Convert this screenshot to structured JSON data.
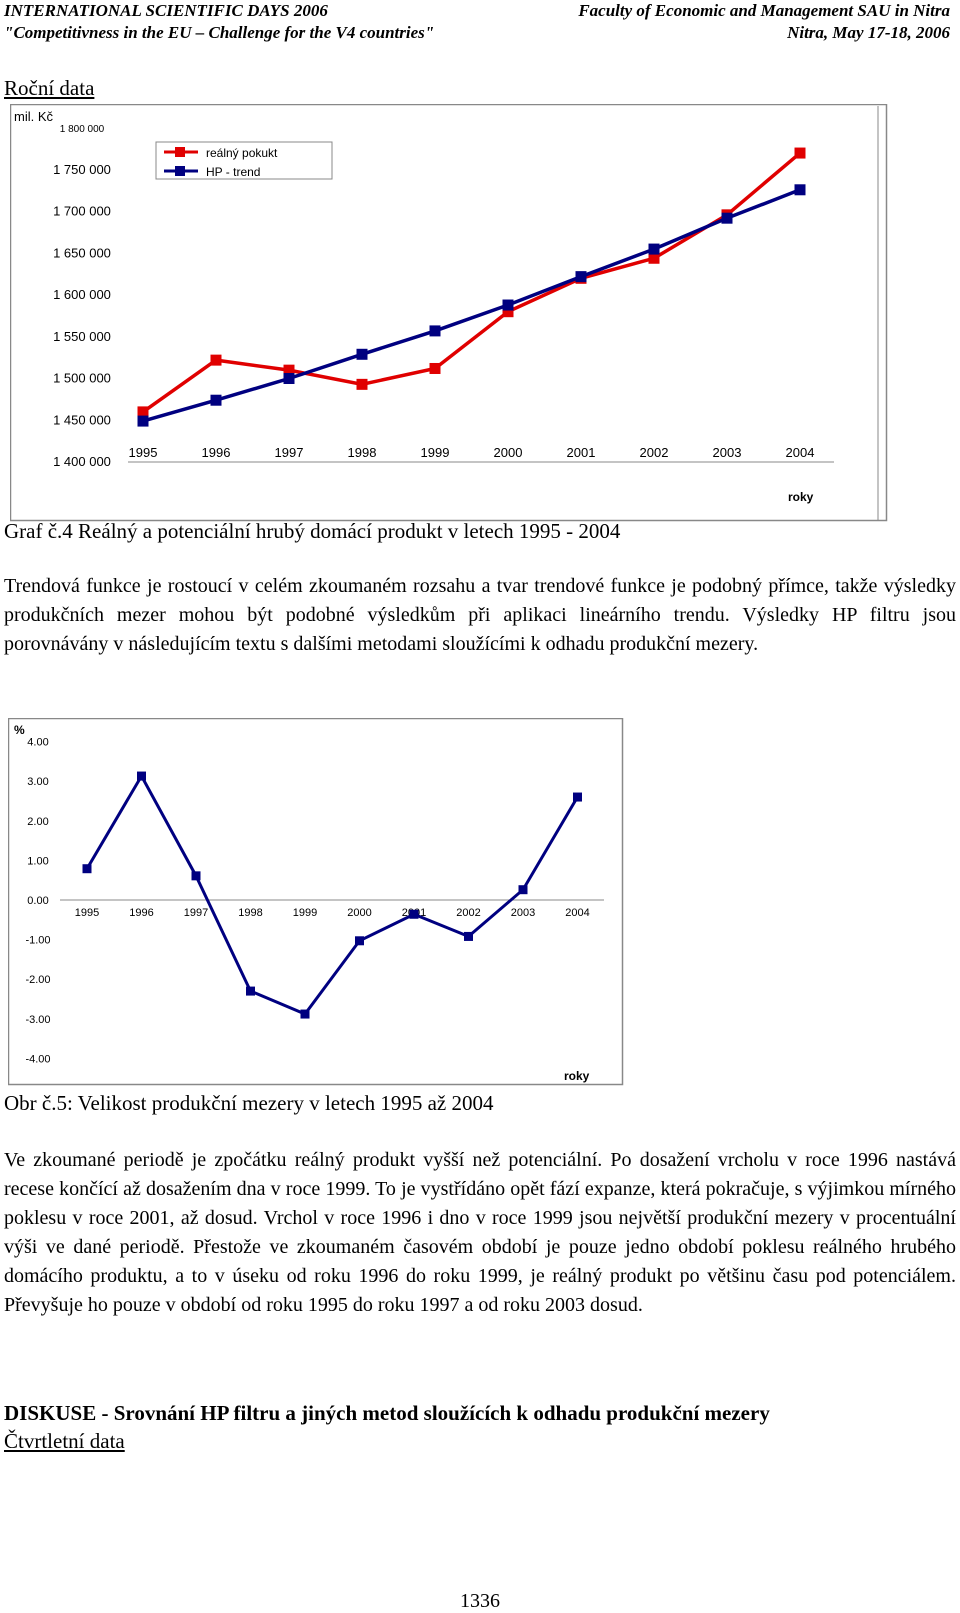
{
  "header": {
    "left_line1": "INTERNATIONAL SCIENTIFIC DAYS 2006",
    "right_line1": "Faculty of Economic and Management SAU in Nitra",
    "left_line2": "\"Competitivness in the EU – Challenge for the V4 countries\"",
    "right_line2": "Nitra, May 17-18, 2006"
  },
  "section_annual": "Roční data",
  "chart_data": [
    {
      "type": "line",
      "ylabel": "mil. Kč",
      "xlabel": "roky",
      "categories": [
        "1995",
        "1996",
        "1997",
        "1998",
        "1999",
        "2000",
        "2001",
        "2002",
        "2003",
        "2004"
      ],
      "ylim": [
        1400000,
        1800000
      ],
      "yticks": [
        "1 800 000",
        "1 750 000",
        "1 700 000",
        "1 650 000",
        "1 600 000",
        "1 550 000",
        "1 500 000",
        "1 450 000",
        "1 400 000"
      ],
      "legend_position": "top-left",
      "series": [
        {
          "name": "reálný pokukt",
          "color": "#e00000",
          "values": [
            1460000,
            1522000,
            1510000,
            1493000,
            1512000,
            1580000,
            1620000,
            1644000,
            1696000,
            1770000
          ]
        },
        {
          "name": "HP - trend",
          "color": "#000080",
          "values": [
            1449000,
            1474000,
            1500000,
            1529000,
            1557000,
            1588000,
            1622000,
            1655000,
            1692000,
            1726000
          ]
        }
      ]
    },
    {
      "type": "line",
      "ylabel": "%",
      "xlabel": "roky",
      "categories": [
        "1995",
        "1996",
        "1997",
        "1998",
        "1999",
        "2000",
        "2001",
        "2002",
        "2003",
        "2004"
      ],
      "ylim": [
        -4,
        4
      ],
      "yticks": [
        "4.00",
        "3.00",
        "2.00",
        "1.00",
        "0.00",
        "-1.00",
        "-2.00",
        "-3.00",
        "-4.00"
      ],
      "series": [
        {
          "color": "#000080",
          "values": [
            0.79,
            3.13,
            0.61,
            -2.3,
            -2.88,
            -1.03,
            -0.36,
            -0.92,
            0.26,
            2.6
          ]
        }
      ]
    }
  ],
  "caption1": "Graf č.4 Reálný a potenciální hrubý domácí produkt v letech 1995 - 2004",
  "para1": "Trendová funkce je rostoucí v celém zkoumaném rozsahu a tvar trendové funkce je podobný přímce, takže výsledky produkčních mezer mohou být podobné výsledkům při aplikaci lineárního trendu. Výsledky HP filtru jsou porovnávány v následujícím textu s dalšími metodami sloužícími k odhadu produkční mezery.",
  "caption2": "Obr č.5: Velikost produkční mezery  v letech 1995 až 2004",
  "para2": "Ve zkoumané periodě je zpočátku reálný produkt vyšší než potenciální. Po dosažení vrcholu v roce 1996 nastává recese končící až dosažením dna v roce 1999. To je vystřídáno opět fází expanze, která pokračuje, s výjimkou mírného poklesu v roce 2001, až dosud. Vrchol v roce 1996 i dno v roce 1999 jsou největší produkční mezery v procentuální výši ve dané periodě. Přestože ve zkoumaném časovém období je pouze jedno období poklesu reálného hrubého domácího produktu, a to v úseku od roku 1996 do roku 1999, je reálný produkt po většinu času pod potenciálem. Převyšuje ho pouze v období od roku 1995 do roku 1997 a od roku 2003 dosud.",
  "heading_discussion": "DISKUSE - Srovnání HP filtru a jiných metod sloužících k odhadu produkční mezery",
  "section_quarterly": "Čtvrtletní data",
  "page_number": "1336"
}
